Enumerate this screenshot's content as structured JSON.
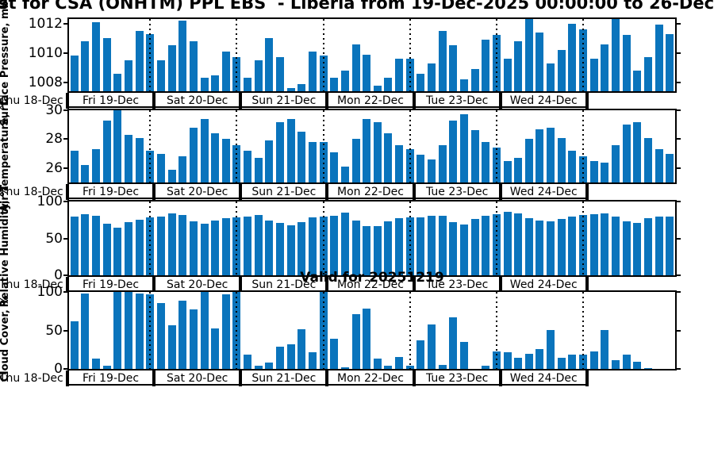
{
  "title": "st for CSA (ONHTM) PPL EBS  - Liberia from 19-Dec-2025 00:00:00 to 26-Dec-",
  "bar_color": "#0a74bc",
  "x_axis": {
    "start_label": "Thu 18-Dec",
    "day_labels": [
      "Fri 19-Dec",
      "Sat 20-Dec",
      "Sun 21-Dec",
      "Mon 22-Dec",
      "Tue 23-Dec",
      "Wed 24-Dec"
    ],
    "bars_per_day": 8
  },
  "chart_data": [
    {
      "type": "bar",
      "ylabel": "Surface Pressure, mb",
      "yticks": [
        1008,
        1010,
        1012
      ],
      "ylim": [
        1007.4,
        1012.3
      ],
      "grid": "dotted-day-boundaries",
      "values": [
        1009.8,
        1010.8,
        1012.1,
        1011.0,
        1008.6,
        1009.5,
        1011.5,
        1011.3,
        1009.5,
        1010.5,
        1012.2,
        1010.8,
        1008.3,
        1008.5,
        1010.1,
        1009.7,
        1008.3,
        1009.5,
        1011.0,
        1009.7,
        1007.6,
        1007.9,
        1010.1,
        1009.8,
        1008.3,
        1008.8,
        1010.6,
        1009.9,
        1007.8,
        1008.3,
        1009.6,
        1009.6,
        1008.6,
        1009.3,
        1011.5,
        1010.5,
        1008.2,
        1008.9,
        1010.9,
        1011.2,
        1009.6,
        1010.8,
        1012.4,
        1011.4,
        1009.3,
        1010.2,
        1012.0,
        1011.6,
        1009.6,
        1010.6,
        1012.3,
        1011.2,
        1008.8,
        1009.7,
        1011.9,
        1011.3
      ]
    },
    {
      "type": "bar",
      "ylabel": "Air Temperature, °C",
      "yticks": [
        26,
        28,
        30
      ],
      "ylim": [
        25,
        30
      ],
      "grid": "dotted-day-boundaries",
      "values": [
        27.2,
        26.2,
        27.3,
        29.3,
        30.0,
        28.3,
        28.1,
        27.2,
        27.0,
        25.9,
        26.8,
        28.8,
        29.4,
        28.4,
        28.0,
        27.6,
        27.2,
        26.7,
        27.9,
        29.2,
        29.4,
        28.5,
        27.8,
        27.8,
        27.1,
        26.1,
        28.0,
        29.4,
        29.2,
        28.4,
        27.6,
        27.3,
        26.9,
        26.6,
        27.6,
        29.3,
        29.7,
        28.6,
        27.8,
        27.4,
        26.5,
        26.7,
        28.0,
        28.7,
        28.8,
        28.1,
        27.2,
        26.8,
        26.5,
        26.4,
        27.6,
        29.0,
        29.2,
        28.1,
        27.3,
        27.0
      ]
    },
    {
      "type": "bar",
      "ylabel": "Relative Humidity, %",
      "yticks": [
        0,
        50,
        100
      ],
      "ylim": [
        0,
        100
      ],
      "grid": "dotted-day-boundaries",
      "values": [
        80,
        83,
        81,
        70,
        64,
        72,
        75,
        78,
        80,
        84,
        82,
        73,
        70,
        74,
        77,
        79,
        80,
        82,
        74,
        71,
        68,
        72,
        79,
        80,
        81,
        85,
        74,
        67,
        67,
        73,
        77,
        78,
        79,
        81,
        81,
        72,
        69,
        76,
        81,
        83,
        86,
        84,
        77,
        74,
        73,
        76,
        80,
        82,
        83,
        84,
        80,
        73,
        71,
        77,
        80,
        80
      ]
    },
    {
      "type": "bar",
      "title": "Valid for 20251219",
      "ylabel": "Cloud Cover, %",
      "yticks": [
        0,
        50,
        100
      ],
      "ylim": [
        0,
        100
      ],
      "grid": "dotted-day-boundaries",
      "values": [
        62,
        98,
        13,
        4,
        100,
        100,
        98,
        97,
        86,
        57,
        89,
        77,
        100,
        53,
        97,
        100,
        19,
        4,
        8,
        29,
        32,
        52,
        22,
        100,
        39,
        2,
        71,
        78,
        13,
        4,
        15,
        4,
        37,
        58,
        5,
        67,
        35,
        0,
        4,
        23,
        22,
        14,
        20,
        26,
        50,
        14,
        19,
        19,
        23,
        50,
        11,
        19,
        9,
        1,
        0,
        0
      ]
    }
  ]
}
